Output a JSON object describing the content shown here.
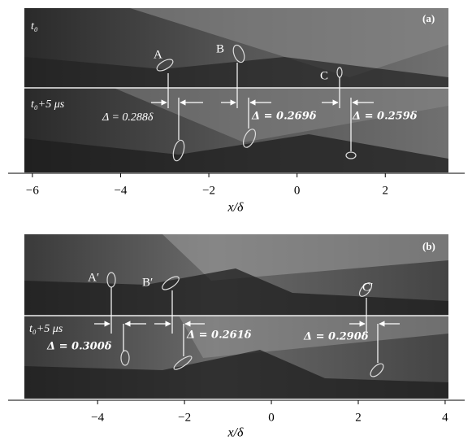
{
  "panels": [
    {
      "label": "(a)",
      "time_top": "t₀",
      "time_bottom": "t₀+5 μs",
      "markers": [
        "A",
        "B",
        "C"
      ],
      "deltas": [
        "Δ = 0.288δ",
        "Δ = 0.269δ",
        "Δ = 0.259δ"
      ],
      "xlabel": "x/δ",
      "xlim": [
        -6.55,
        3.8
      ],
      "xticks": [
        {
          "value": -6,
          "label": "−6"
        },
        {
          "value": -4,
          "label": "−4"
        },
        {
          "value": -2,
          "label": "−2"
        },
        0,
        2
      ]
    },
    {
      "label": "(b)",
      "time_bottom": "t₀+5 μs",
      "markers": [
        "A′",
        "B′",
        "C′"
      ],
      "deltas": [
        "Δ = 0.300δ",
        "Δ = 0.261δ",
        "Δ = 0.290δ"
      ],
      "xlabel": "x/δ",
      "xlim": [
        -6.06,
        4.45
      ],
      "xticks": [
        {
          "value": -4,
          "label": "−4"
        },
        {
          "value": -2,
          "label": "−2"
        },
        0,
        2,
        4
      ]
    }
  ]
}
